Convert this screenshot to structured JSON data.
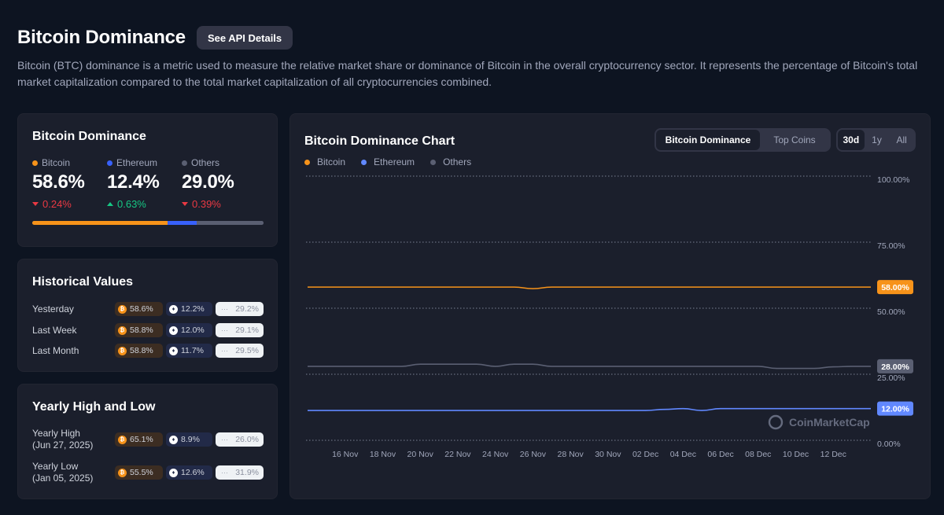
{
  "page": {
    "title": "Bitcoin Dominance",
    "api_button": "See API Details",
    "description": "Bitcoin (BTC) dominance is a metric used to measure the relative market share or dominance of Bitcoin in the overall cryptocurrency sector. It represents the percentage of Bitcoin's total market capitalization compared to the total market capitalization of all cryptocurrencies combined."
  },
  "dominance": {
    "title": "Bitcoin Dominance",
    "items": [
      {
        "name": "Bitcoin",
        "value": "58.6%",
        "change": "0.24%",
        "direction": "down",
        "color": "#f7931a"
      },
      {
        "name": "Ethereum",
        "value": "12.4%",
        "change": "0.63%",
        "direction": "up",
        "color": "#3861fb"
      },
      {
        "name": "Others",
        "value": "29.0%",
        "change": "0.39%",
        "direction": "down",
        "color": "#5a5f72"
      }
    ],
    "bar_shares": [
      58.6,
      12.4,
      29.0
    ]
  },
  "historical": {
    "title": "Historical Values",
    "rows": [
      {
        "label": "Yesterday",
        "btc": "58.6%",
        "eth": "12.2%",
        "oth": "29.2%"
      },
      {
        "label": "Last Week",
        "btc": "58.8%",
        "eth": "12.0%",
        "oth": "29.1%"
      },
      {
        "label": "Last Month",
        "btc": "58.8%",
        "eth": "11.7%",
        "oth": "29.5%"
      }
    ]
  },
  "yearly": {
    "title": "Yearly High and Low",
    "rows": [
      {
        "label": "Yearly High",
        "date": "(Jun 27, 2025)",
        "btc": "65.1%",
        "eth": "8.9%",
        "oth": "26.0%"
      },
      {
        "label": "Yearly Low",
        "date": "(Jan 05, 2025)",
        "btc": "55.5%",
        "eth": "12.6%",
        "oth": "31.9%"
      }
    ]
  },
  "chart_panel": {
    "title": "Bitcoin Dominance Chart",
    "type_options": [
      "Bitcoin Dominance",
      "Top Coins"
    ],
    "range_options": [
      "30d",
      "1y",
      "All"
    ],
    "watermark": "CoinMarketCap"
  },
  "chart_data": {
    "type": "line",
    "title": "Bitcoin Dominance Chart",
    "x": [
      "Nov 14",
      "Nov 15",
      "Nov 16",
      "Nov 17",
      "Nov 18",
      "Nov 19",
      "Nov 20",
      "Nov 21",
      "Nov 22",
      "Nov 23",
      "Nov 24",
      "Nov 25",
      "Nov 26",
      "Nov 27",
      "Nov 28",
      "Nov 29",
      "Nov 30",
      "Dec 01",
      "Dec 02",
      "Dec 03",
      "Dec 04",
      "Dec 05",
      "Dec 06",
      "Dec 07",
      "Dec 08",
      "Dec 09",
      "Dec 10",
      "Dec 11",
      "Dec 12",
      "Dec 13",
      "Dec 14"
    ],
    "x_tick_labels": [
      "16 Nov",
      "18 Nov",
      "20 Nov",
      "22 Nov",
      "24 Nov",
      "26 Nov",
      "28 Nov",
      "30 Nov",
      "02 Dec",
      "04 Dec",
      "06 Dec",
      "08 Dec",
      "10 Dec",
      "12 Dec"
    ],
    "series": [
      {
        "name": "Bitcoin",
        "color": "#f7931a",
        "badge": "58.00%",
        "values": [
          58,
          58,
          58,
          58,
          58,
          58,
          58,
          58,
          58,
          58,
          58,
          58,
          57.4,
          58,
          58,
          58,
          58,
          58,
          58,
          58,
          58,
          58,
          58,
          58,
          58,
          58,
          58,
          58,
          58,
          58,
          58
        ]
      },
      {
        "name": "Ethereum",
        "color": "#6188ff",
        "badge": "12.00%",
        "values": [
          11.3,
          11.3,
          11.3,
          11.3,
          11.3,
          11.3,
          11.3,
          11.3,
          11.3,
          11.3,
          11.3,
          11.3,
          11.3,
          11.3,
          11.3,
          11.3,
          11.3,
          11.3,
          11.3,
          11.7,
          12.0,
          11.3,
          12.0,
          12.0,
          12.0,
          12.0,
          12.0,
          12.0,
          12.0,
          12.0,
          12.0
        ]
      },
      {
        "name": "Others",
        "color": "#5a5f72",
        "badge": "28.00%",
        "values": [
          28.0,
          28.0,
          28.0,
          28.0,
          28.0,
          28.0,
          28.8,
          28.8,
          28.8,
          28.8,
          28.0,
          28.8,
          28.8,
          28.0,
          28.0,
          28.0,
          28.0,
          28.0,
          28.0,
          28.0,
          28.0,
          28.0,
          28.0,
          28.0,
          28.0,
          27.2,
          27.2,
          27.2,
          27.8,
          28.0,
          28.0
        ]
      }
    ],
    "y_ticks": [
      "100.00%",
      "75.00%",
      "50.00%",
      "25.00%",
      "0.00%"
    ],
    "ylim": [
      0,
      100
    ],
    "grid": true,
    "legend": "top-left"
  }
}
